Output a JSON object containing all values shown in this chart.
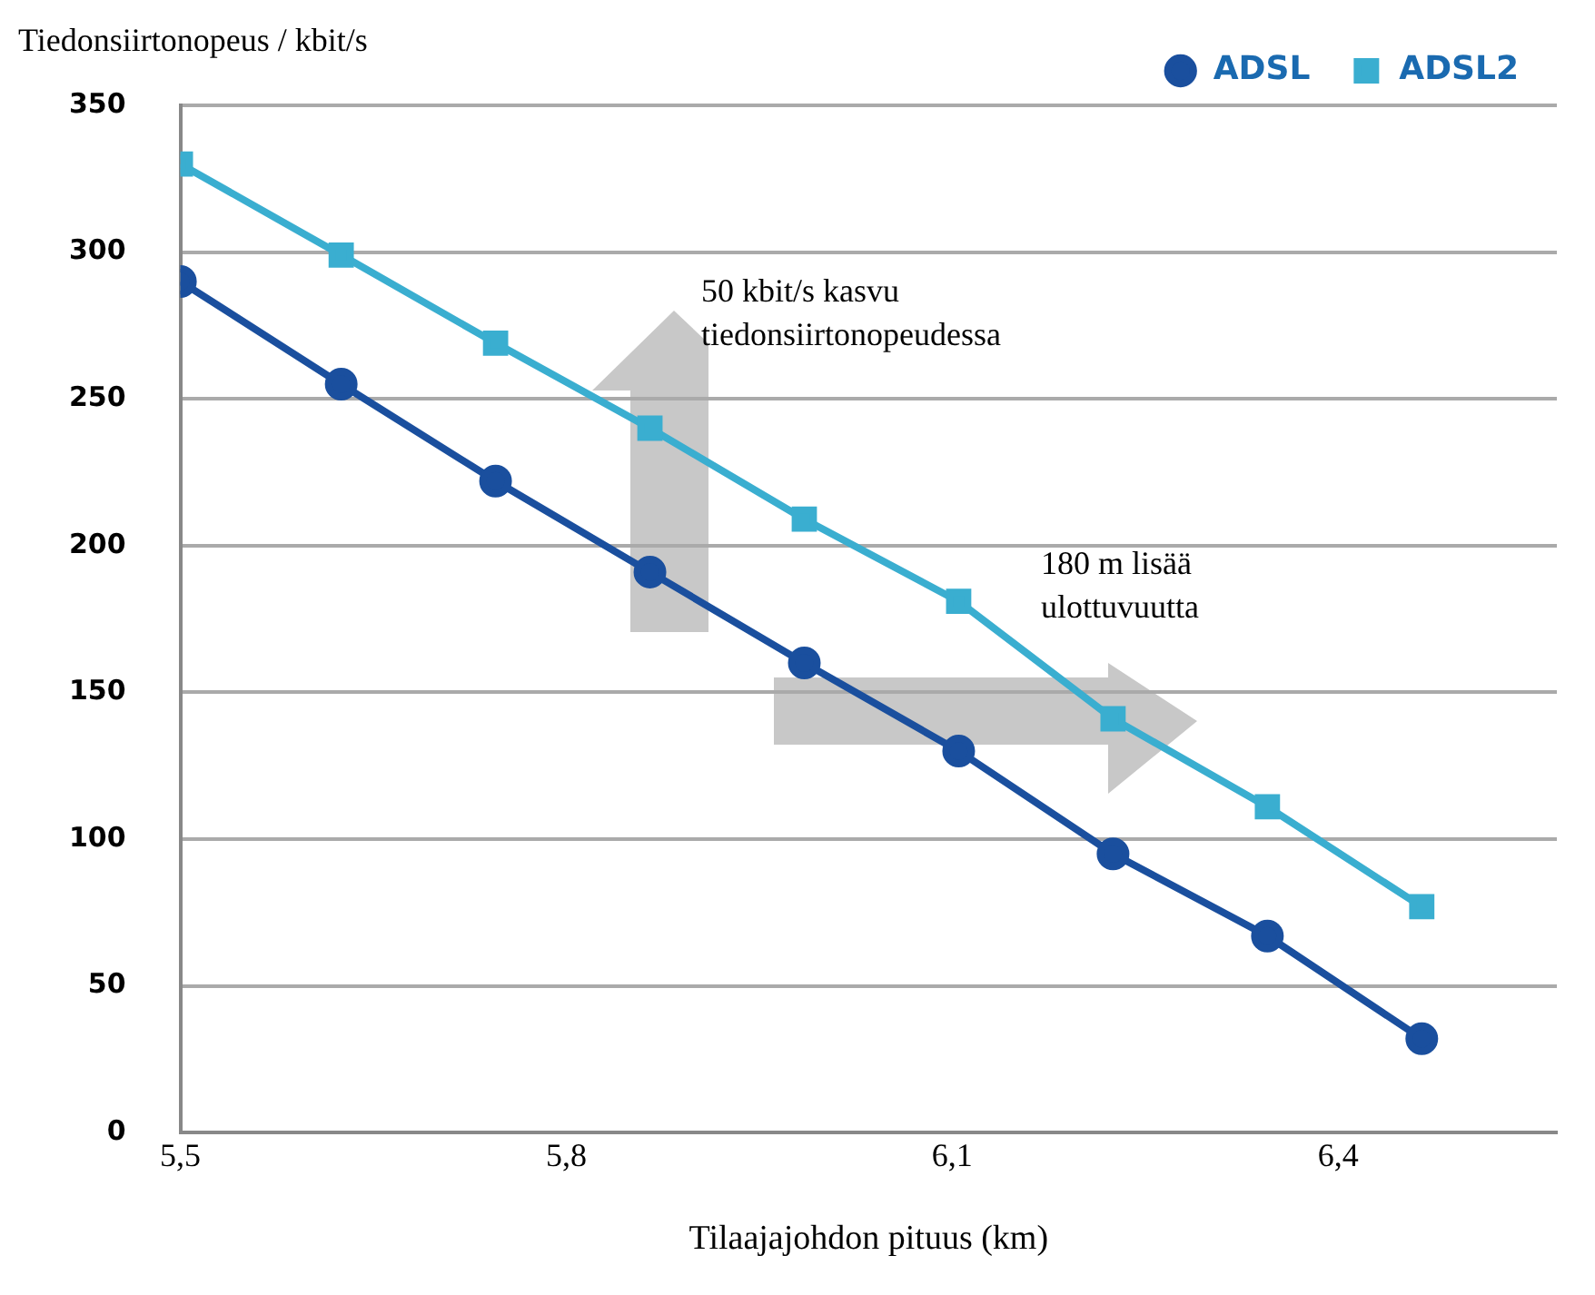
{
  "chart_data": {
    "type": "line",
    "xlabel": "Tilaajajohdon pituus (km)",
    "ylabel": "Tiedonsiirtonopeus / kbit/s",
    "x": [
      5.5,
      5.625,
      5.745,
      5.865,
      5.985,
      6.105,
      6.225,
      6.345,
      6.465
    ],
    "series": [
      {
        "name": "ADSL",
        "color": "#1a4f9e",
        "marker": "circle",
        "values": [
          290,
          255,
          222,
          191,
          160,
          130,
          95,
          67,
          32
        ]
      },
      {
        "name": "ADSL2",
        "color": "#3aaed0",
        "marker": "square",
        "values": [
          330,
          299,
          269,
          240,
          209,
          181,
          141,
          111,
          77
        ]
      }
    ],
    "xlim": [
      5.5,
      6.57
    ],
    "xticks": [
      {
        "value": 5.5,
        "label": "5,5"
      },
      {
        "value": 5.8,
        "label": "5,8"
      },
      {
        "value": 6.1,
        "label": "6,1"
      },
      {
        "value": 6.4,
        "label": "6,4"
      }
    ],
    "ylim": [
      0,
      350
    ],
    "yticks": [
      0,
      50,
      100,
      150,
      200,
      250,
      300,
      350
    ],
    "grid": "y",
    "legend": "top right",
    "annotations": [
      "50 kbit/s kasvu\ntiedonsiirtonopeudessa",
      "180 m lisää\nulottuvuutta"
    ]
  }
}
